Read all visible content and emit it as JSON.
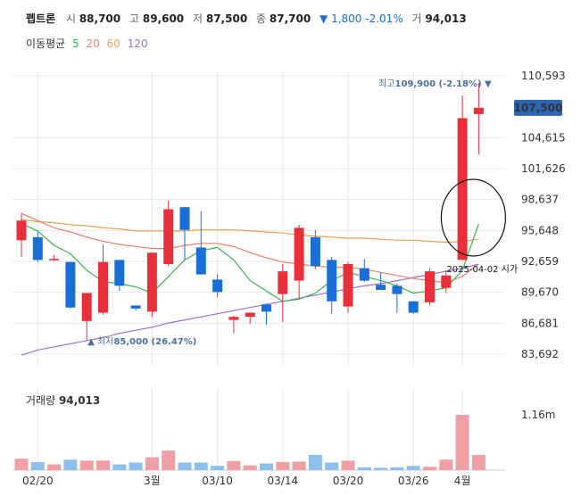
{
  "header": {
    "name": "펩트론",
    "open_label": "시",
    "open": "88,700",
    "high_label": "고",
    "high": "89,600",
    "low_label": "저",
    "low": "87,500",
    "close_label": "종",
    "close": "87,700",
    "change_arrow": "▼",
    "change": "1,800",
    "change_pct": "-2.01%",
    "volume_label": "거",
    "volume": "94,013"
  },
  "ma_legend": {
    "title": "이동평균",
    "periods": [
      {
        "label": "5",
        "color": "#3cb44b"
      },
      {
        "label": "20",
        "color": "#f07e6e"
      },
      {
        "label": "60",
        "color": "#f0a050"
      },
      {
        "label": "120",
        "color": "#9b6fd8"
      }
    ]
  },
  "volume_panel": {
    "label": "거래량",
    "value": "94,013",
    "axis_label": "1.16m"
  },
  "colors": {
    "up": "#e8303a",
    "down": "#1a6fd6",
    "up_vol": "#f0a0a4",
    "down_vol": "#8ec0ee",
    "grid": "#e8e8e8",
    "current": "#2c65b5"
  },
  "chart_data": {
    "type": "candlestick",
    "title": "펩트론",
    "y_ticks": [
      "110,593",
      "104,615",
      "101,626",
      "98,637",
      "95,648",
      "92,659",
      "89,670",
      "86,681",
      "83,692"
    ],
    "y_tick_values": [
      110593,
      104615,
      101626,
      98637,
      95648,
      92659,
      89670,
      86681,
      83692
    ],
    "ylim": [
      83692,
      110593
    ],
    "x_ticks": [
      {
        "label": "02/20",
        "index": 1
      },
      {
        "label": "3월",
        "index": 8
      },
      {
        "label": "03/10",
        "index": 12
      },
      {
        "label": "03/14",
        "index": 16
      },
      {
        "label": "03/20",
        "index": 20
      },
      {
        "label": "03/26",
        "index": 24
      },
      {
        "label": "4월",
        "index": 27
      }
    ],
    "current_price_label": "107,500",
    "current_price": 107500,
    "high_annotation": {
      "prefix": "최고",
      "text": "109,900 (-2.18%)",
      "index": 29,
      "value": 109900
    },
    "low_annotation": {
      "prefix": "최저",
      "text": "85,000 (26.47%)",
      "index": 4,
      "value": 85000
    },
    "event_annotation": {
      "text": "2025-04-02 시가",
      "index": 28
    },
    "candles": [
      {
        "o": 94700,
        "h": 97300,
        "l": 93100,
        "c": 96600
      },
      {
        "o": 95000,
        "h": 95500,
        "l": 92600,
        "c": 92800
      },
      {
        "o": 92800,
        "h": 93300,
        "l": 92700,
        "c": 92900
      },
      {
        "o": 92600,
        "h": 92600,
        "l": 88100,
        "c": 88200
      },
      {
        "o": 86900,
        "h": 89600,
        "l": 85000,
        "c": 89600
      },
      {
        "o": 87700,
        "h": 94300,
        "l": 87500,
        "c": 92600
      },
      {
        "o": 92800,
        "h": 92800,
        "l": 89800,
        "c": 90300
      },
      {
        "o": 88400,
        "h": 88400,
        "l": 87900,
        "c": 88100
      },
      {
        "o": 87800,
        "h": 93500,
        "l": 87300,
        "c": 93500
      },
      {
        "o": 92400,
        "h": 98500,
        "l": 92200,
        "c": 97700
      },
      {
        "o": 97900,
        "h": 97900,
        "l": 92800,
        "c": 95700
      },
      {
        "o": 94000,
        "h": 97500,
        "l": 91500,
        "c": 91400
      },
      {
        "o": 90900,
        "h": 91400,
        "l": 89200,
        "c": 89700
      },
      {
        "o": 87000,
        "h": 87400,
        "l": 85700,
        "c": 87300
      },
      {
        "o": 87300,
        "h": 87700,
        "l": 86600,
        "c": 87700
      },
      {
        "o": 88500,
        "h": 88600,
        "l": 86500,
        "c": 87800
      },
      {
        "o": 89500,
        "h": 92400,
        "l": 86800,
        "c": 91700
      },
      {
        "o": 90800,
        "h": 96200,
        "l": 89100,
        "c": 95900
      },
      {
        "o": 95000,
        "h": 95700,
        "l": 91900,
        "c": 92200
      },
      {
        "o": 92800,
        "h": 93100,
        "l": 87600,
        "c": 88800
      },
      {
        "o": 88300,
        "h": 92600,
        "l": 87700,
        "c": 92400
      },
      {
        "o": 92000,
        "h": 92900,
        "l": 90700,
        "c": 90800
      },
      {
        "o": 90400,
        "h": 91600,
        "l": 90000,
        "c": 89900
      },
      {
        "o": 90300,
        "h": 90500,
        "l": 87700,
        "c": 89500
      },
      {
        "o": 88800,
        "h": 88800,
        "l": 87600,
        "c": 87700
      },
      {
        "o": 88700,
        "h": 92000,
        "l": 88400,
        "c": 91700
      },
      {
        "o": 90100,
        "h": 91800,
        "l": 89600,
        "c": 91300
      },
      {
        "o": 92800,
        "h": 108700,
        "l": 92800,
        "c": 106500
      },
      {
        "o": 106900,
        "h": 109900,
        "l": 103000,
        "c": 107500
      }
    ],
    "ma5": [
      96300,
      95600,
      94200,
      93400,
      91800,
      90700,
      90500,
      90200,
      89600,
      91200,
      92800,
      93700,
      94000,
      92800,
      90800,
      89800,
      88800,
      89000,
      89600,
      90800,
      91600,
      91200,
      90800,
      90300,
      89600,
      89800,
      90100,
      91800,
      96300
    ],
    "ma20": [
      97300,
      96600,
      95900,
      95500,
      95000,
      94600,
      94300,
      94100,
      93900,
      93900,
      94200,
      94400,
      94400,
      94100,
      93500,
      93000,
      92600,
      92400,
      92200,
      92100,
      92100,
      91900,
      91600,
      91300,
      91000,
      90800,
      90600,
      91200,
      92400
    ],
    "ma60": [
      96700,
      96500,
      96400,
      96200,
      96100,
      95900,
      95800,
      95600,
      95600,
      95600,
      95600,
      95700,
      95700,
      95700,
      95600,
      95500,
      95400,
      95200,
      95100,
      95000,
      94900,
      94900,
      94800,
      94700,
      94700,
      94600,
      94500,
      94600,
      94800
    ],
    "ma120": [
      83600,
      84100,
      84400,
      84700,
      85000,
      85300,
      85700,
      86000,
      86300,
      86700,
      87000,
      87300,
      87600,
      87900,
      88200,
      88500,
      88800,
      89100,
      89400,
      89700,
      90000,
      90300,
      90500,
      90800,
      91100,
      91400,
      91700,
      92000,
      92400
    ],
    "volume": [
      0.24,
      0.17,
      0.12,
      0.22,
      0.2,
      0.2,
      0.12,
      0.16,
      0.27,
      0.41,
      0.16,
      0.16,
      0.09,
      0.19,
      0.1,
      0.14,
      0.17,
      0.18,
      0.32,
      0.16,
      0.2,
      0.06,
      0.05,
      0.06,
      0.09,
      0.07,
      0.22,
      1.16,
      0.32
    ],
    "volume_max": 1.16
  }
}
